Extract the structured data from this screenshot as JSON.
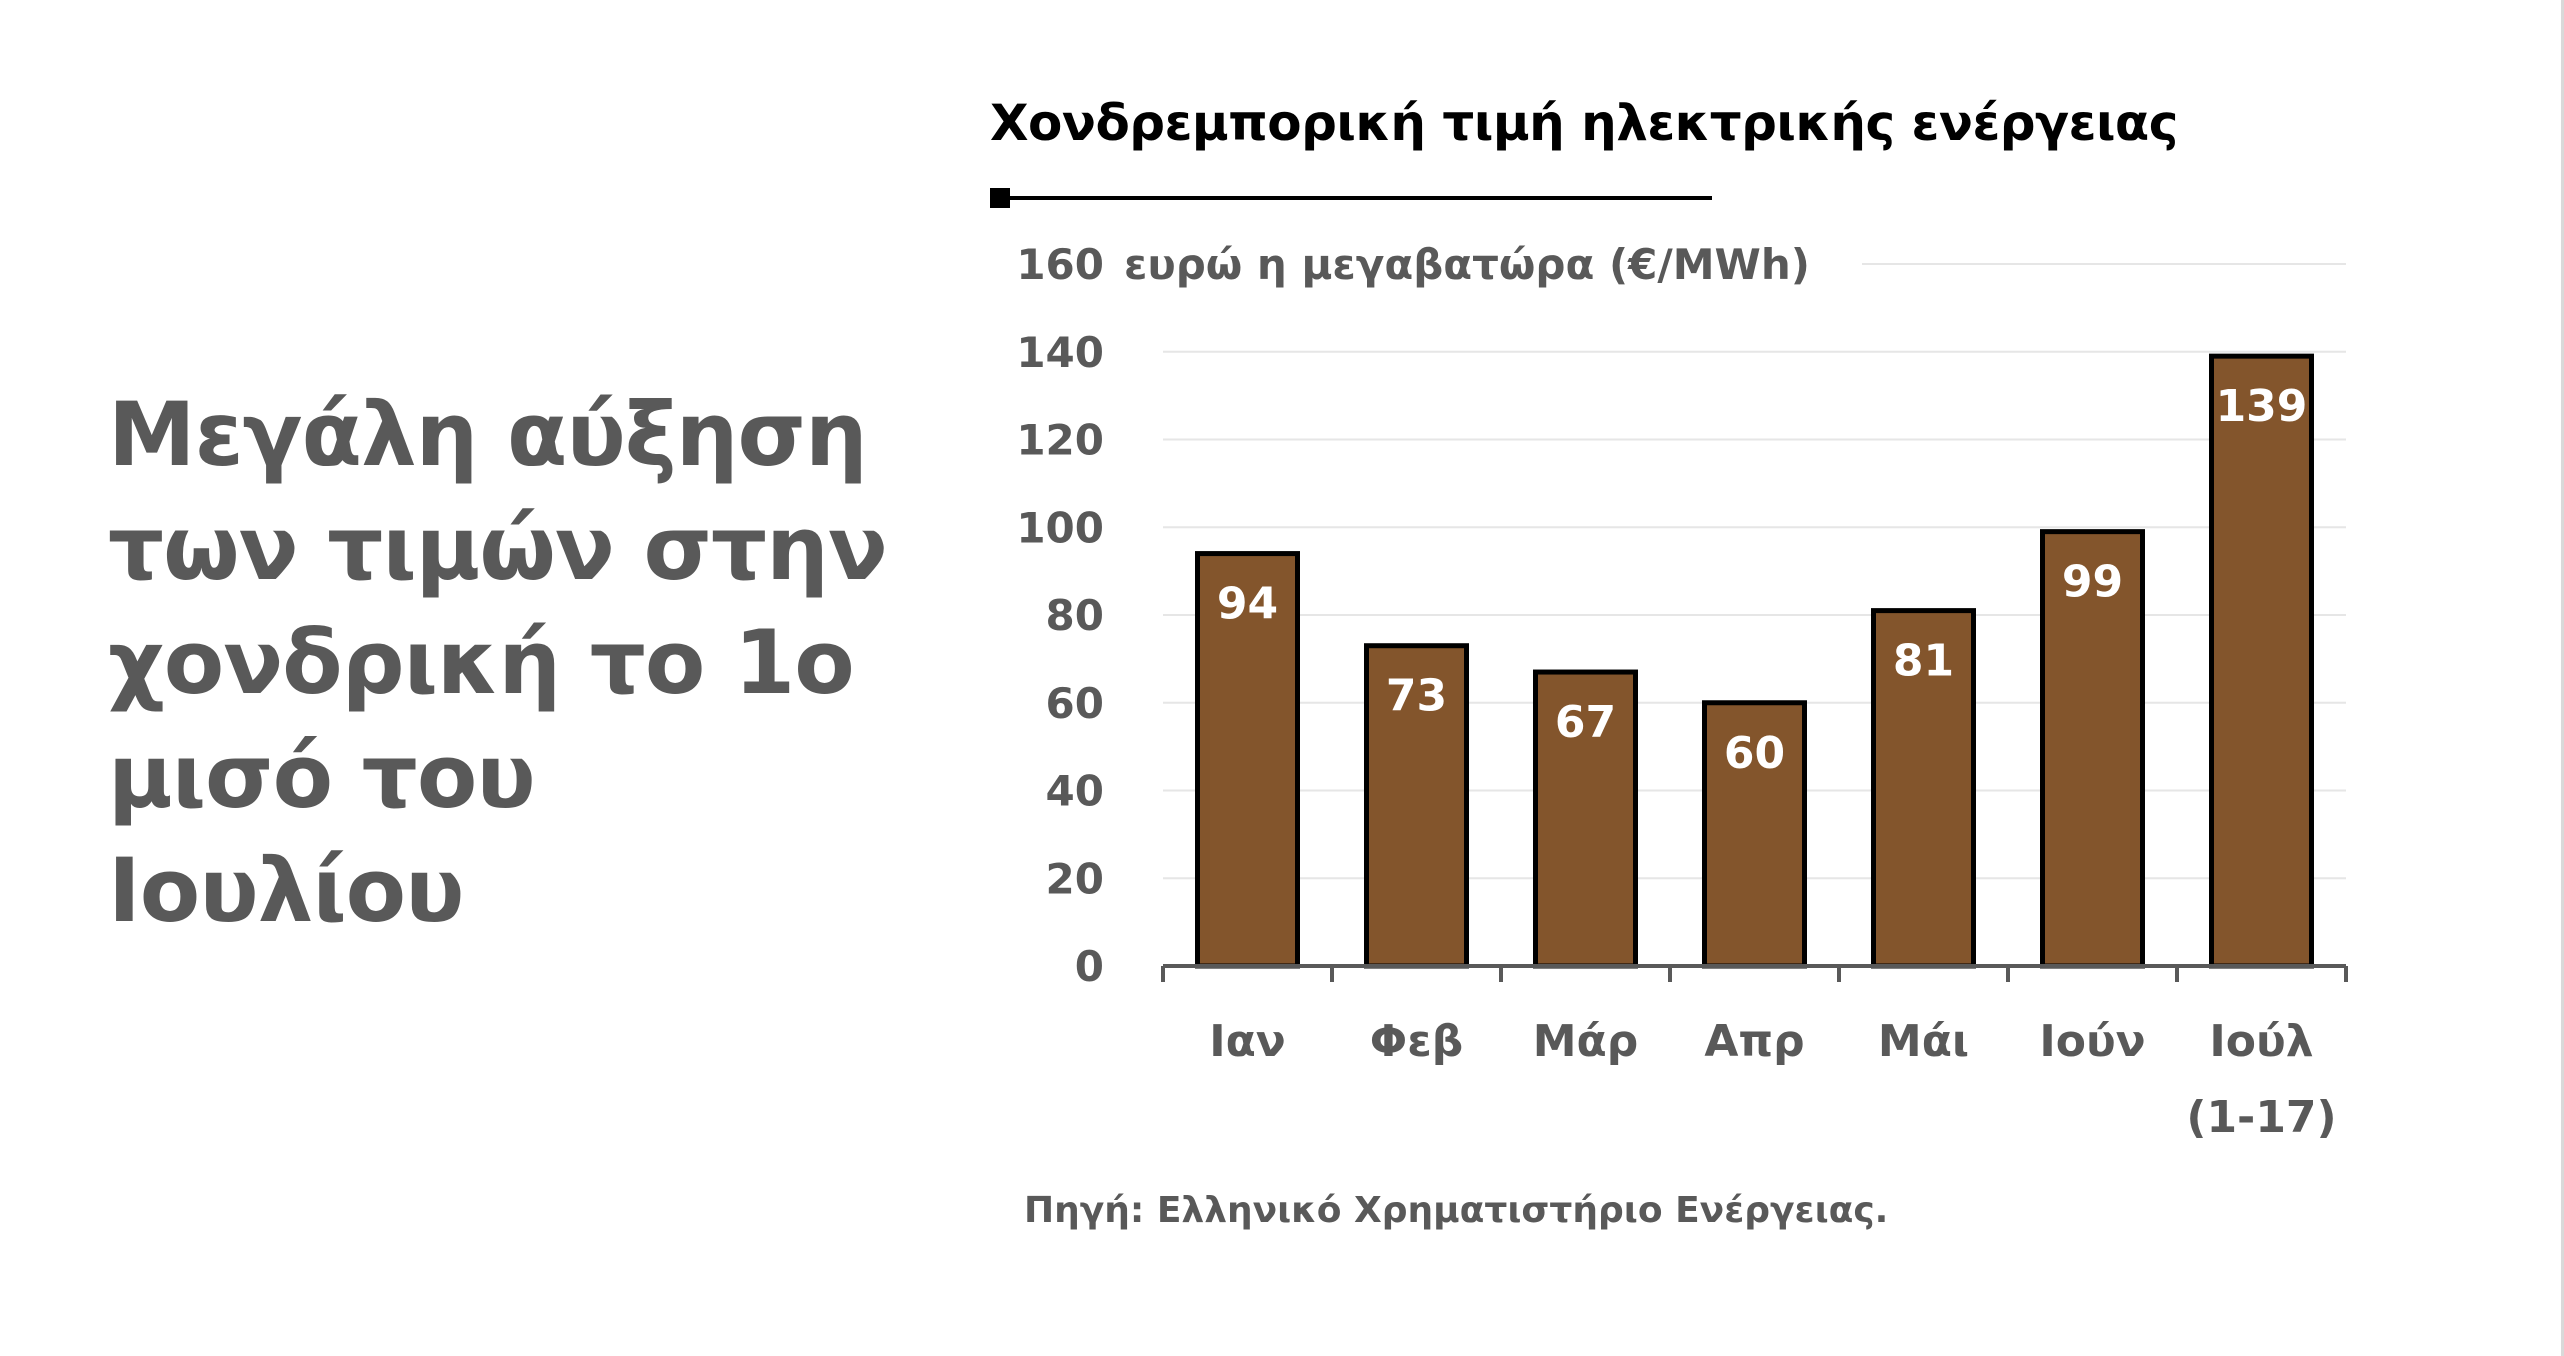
{
  "headline": {
    "lines": [
      "Μεγάλη αύξηση",
      "των τιμών στην",
      "χονδρική το 1ο",
      "μισό του",
      "Ιουλίου"
    ]
  },
  "source": "Πηγή: Ελληνικό Χρηματιστήριο Ενέργειας.",
  "colors": {
    "bar_fill": "#83552C",
    "bar_stroke": "#000000",
    "axis_text": "#595959",
    "gridline": "#e6e6e6",
    "data_label": "#ffffff"
  },
  "chart_data": {
    "type": "bar",
    "title": "Χονδρεμπορική τιμή ηλεκτρικής ενέργειας",
    "ylabel": "ευρώ η μεγαβατώρα (€/MWh)",
    "xlabel": "",
    "ylim": [
      0,
      160
    ],
    "yticks": [
      0,
      20,
      40,
      60,
      80,
      100,
      120,
      140,
      160
    ],
    "grid": true,
    "categories": [
      [
        "Ιαν"
      ],
      [
        "Φεβ"
      ],
      [
        "Μάρ"
      ],
      [
        "Απρ"
      ],
      [
        "Μάι"
      ],
      [
        "Ιούν"
      ],
      [
        "Ιούλ",
        "(1-17)"
      ]
    ],
    "values": [
      94,
      73,
      67,
      60,
      81,
      99,
      139
    ],
    "data_labels": [
      "94",
      "73",
      "67",
      "60",
      "81",
      "99",
      "139"
    ]
  }
}
